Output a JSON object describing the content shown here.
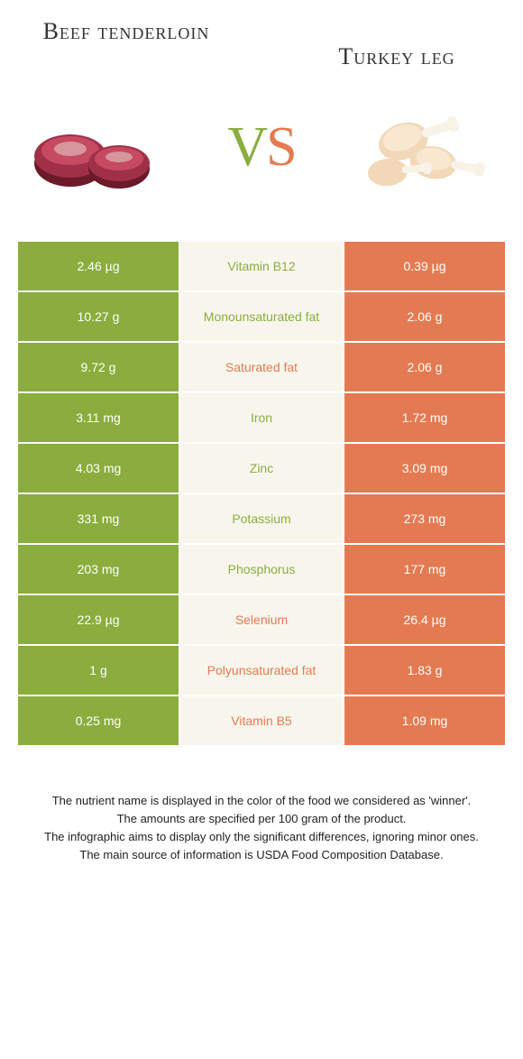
{
  "header": {
    "left_title": "Beef tenderloin",
    "right_title": "Turkey leg"
  },
  "vs": {
    "v": "V",
    "s": "S"
  },
  "colors": {
    "left": "#8aad3e",
    "right": "#e47a51",
    "mid_bg": "#f8f6ec",
    "beef_dark": "#6b1a2a",
    "beef_light": "#a03048",
    "turkey_skin": "#f2d8b8",
    "turkey_bone": "#f8f3e8"
  },
  "rows": [
    {
      "left": "2.46 µg",
      "label": "Vitamin B12",
      "right": "0.39 µg",
      "winner": "left"
    },
    {
      "left": "10.27 g",
      "label": "Monounsaturated fat",
      "right": "2.06 g",
      "winner": "left"
    },
    {
      "left": "9.72 g",
      "label": "Saturated fat",
      "right": "2.06 g",
      "winner": "right"
    },
    {
      "left": "3.11 mg",
      "label": "Iron",
      "right": "1.72 mg",
      "winner": "left"
    },
    {
      "left": "4.03 mg",
      "label": "Zinc",
      "right": "3.09 mg",
      "winner": "left"
    },
    {
      "left": "331 mg",
      "label": "Potassium",
      "right": "273 mg",
      "winner": "left"
    },
    {
      "left": "203 mg",
      "label": "Phosphorus",
      "right": "177 mg",
      "winner": "left"
    },
    {
      "left": "22.9 µg",
      "label": "Selenium",
      "right": "26.4 µg",
      "winner": "right"
    },
    {
      "left": "1 g",
      "label": "Polyunsaturated fat",
      "right": "1.83 g",
      "winner": "right"
    },
    {
      "left": "0.25 mg",
      "label": "Vitamin B5",
      "right": "1.09 mg",
      "winner": "right"
    }
  ],
  "footer": {
    "line1": "The nutrient name is displayed in the color of the food we considered as 'winner'.",
    "line2": "The amounts are specified per 100 gram of the product.",
    "line3": "The infographic aims to display only the significant differences, ignoring minor ones.",
    "line4": "The main source of information is USDA Food Composition Database."
  }
}
